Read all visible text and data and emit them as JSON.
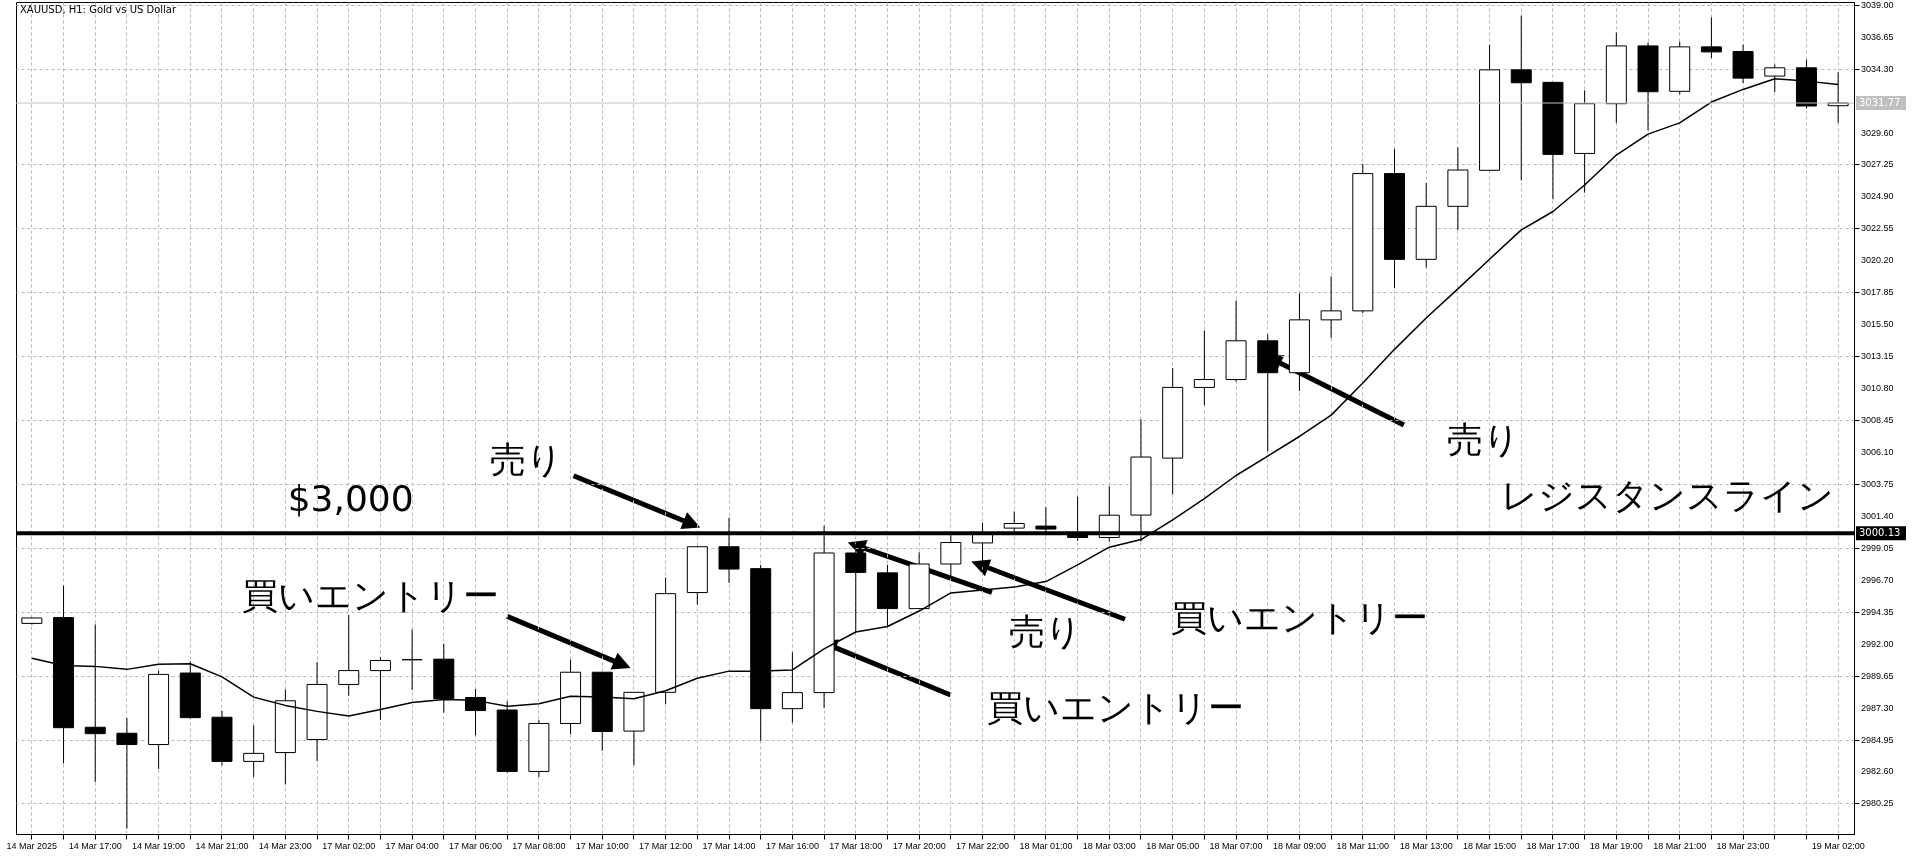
{
  "chart_data": {
    "type": "candlestick",
    "title": "XAUUSD, H1: Gold vs US Dollar",
    "categories": [
      "14 Mar 2025",
      null,
      "14 Mar 17:00",
      null,
      "14 Mar 19:00",
      null,
      "14 Mar 21:00",
      null,
      "14 Mar 23:00",
      null,
      "17 Mar 02:00",
      null,
      "17 Mar 04:00",
      null,
      "17 Mar 06:00",
      null,
      "17 Mar 08:00",
      null,
      "17 Mar 10:00",
      null,
      "17 Mar 12:00",
      null,
      "17 Mar 14:00",
      null,
      "17 Mar 16:00",
      null,
      "17 Mar 18:00",
      null,
      "17 Mar 20:00",
      null,
      "17 Mar 22:00",
      null,
      "18 Mar 01:00",
      null,
      "18 Mar 03:00",
      null,
      "18 Mar 05:00",
      null,
      "18 Mar 07:00",
      null,
      "18 Mar 09:00",
      null,
      "18 Mar 11:00",
      null,
      "18 Mar 13:00",
      null,
      "18 Mar 15:00",
      null,
      "18 Mar 17:00",
      null,
      "18 Mar 19:00",
      null,
      "18 Mar 21:00",
      null,
      "18 Mar 23:00",
      null,
      null,
      "19 Mar 02:00"
    ],
    "ohlc": [
      [
        2993.49,
        2993.95,
        2993.4,
        2993.89
      ],
      [
        2993.92,
        2996.27,
        2983.19,
        2985.82
      ],
      [
        2985.85,
        2993.42,
        2981.83,
        2985.38
      ],
      [
        2985.41,
        2986.53,
        2978.4,
        2984.58
      ],
      [
        2984.58,
        2989.99,
        2982.79,
        2989.74
      ],
      [
        2989.84,
        2990.7,
        2986.5,
        2986.56
      ],
      [
        2986.59,
        2987.06,
        2983.06,
        2983.34
      ],
      [
        2983.34,
        2986.0,
        2982.2,
        2983.93
      ],
      [
        2983.99,
        2988.63,
        2981.67,
        2987.8
      ],
      [
        2984.95,
        2990.64,
        2983.37,
        2989.0
      ],
      [
        2989.0,
        2994.1,
        2988.17,
        2990.02
      ],
      [
        2990.02,
        2991.0,
        2986.4,
        2990.76
      ],
      [
        2990.82,
        2993.05,
        2988.6,
        2990.82
      ],
      [
        2990.86,
        2992.0,
        2986.93,
        2987.95
      ],
      [
        2988.04,
        2988.66,
        2985.26,
        2987.08
      ],
      [
        2987.12,
        2987.77,
        2982.5,
        2982.6
      ],
      [
        2982.6,
        2986.38,
        2982.2,
        2986.13
      ],
      [
        2986.13,
        2990.83,
        2985.35,
        2989.9
      ],
      [
        2989.9,
        2989.9,
        2984.12,
        2985.54
      ],
      [
        2985.57,
        2988.42,
        2983.06,
        2988.42
      ],
      [
        2988.42,
        2996.86,
        2987.55,
        2995.68
      ],
      [
        2995.76,
        2999.2,
        2994.87,
        2999.13
      ],
      [
        2999.13,
        3001.26,
        2996.47,
        2997.49
      ],
      [
        2997.52,
        2997.8,
        2984.87,
        2987.22
      ],
      [
        2987.22,
        2991.37,
        2986.19,
        2988.4
      ],
      [
        2988.4,
        3000.68,
        2987.28,
        2998.67
      ],
      [
        2998.67,
        2999.35,
        2992.85,
        2997.24
      ],
      [
        2997.21,
        2997.8,
        2993.25,
        2994.58
      ],
      [
        2994.58,
        2998.73,
        2994.58,
        2997.86
      ],
      [
        2997.86,
        3000.12,
        2996.87,
        2999.44
      ],
      [
        2999.41,
        3000.9,
        2997.64,
        3000.12
      ],
      [
        3000.5,
        3001.73,
        3000.28,
        3000.84
      ],
      [
        3000.65,
        3002.04,
        2999.97,
        3000.43
      ],
      [
        3000.18,
        3002.81,
        2999.56,
        2999.81
      ],
      [
        2999.81,
        3003.58,
        2999.5,
        3001.45
      ],
      [
        3001.46,
        3008.5,
        2999.52,
        3005.73
      ],
      [
        3005.65,
        3012.27,
        3002.98,
        3010.85
      ],
      [
        3010.85,
        3015.04,
        3009.54,
        3011.43
      ],
      [
        3011.43,
        3017.24,
        3011.27,
        3014.28
      ],
      [
        3014.28,
        3014.75,
        3006.12,
        3011.93
      ],
      [
        3011.93,
        3017.76,
        3010.59,
        3015.82
      ],
      [
        3015.82,
        3019.02,
        3014.49,
        3016.48
      ],
      [
        3016.48,
        3027.3,
        3016.32,
        3026.58
      ],
      [
        3026.58,
        3028.38,
        3018.15,
        3020.27
      ],
      [
        3020.27,
        3025.89,
        3019.67,
        3024.17
      ],
      [
        3024.17,
        3028.5,
        3022.42,
        3026.84
      ],
      [
        3026.82,
        3036.05,
        3026.82,
        3034.21
      ],
      [
        3034.21,
        3038.2,
        3026.08,
        3033.26
      ],
      [
        3033.29,
        3033.29,
        3024.69,
        3027.99
      ],
      [
        3028.06,
        3032.7,
        3025.18,
        3031.72
      ],
      [
        3031.72,
        3036.95,
        3030.31,
        3035.97
      ],
      [
        3035.97,
        3036.22,
        3029.77,
        3032.6
      ],
      [
        3032.63,
        3036.29,
        3032.41,
        3035.9
      ],
      [
        3035.9,
        3038.07,
        3035.07,
        3035.53
      ],
      [
        3035.56,
        3036.07,
        3033.24,
        3033.6
      ],
      [
        3033.75,
        3034.6,
        3032.58,
        3034.36
      ],
      [
        3034.36,
        3034.97,
        3031.36,
        3031.55
      ],
      [
        3031.57,
        3034.04,
        3030.31,
        3031.77
      ]
    ],
    "series": [
      {
        "type": "line",
        "color": "#000000",
        "values": [
          2990.92,
          2990.39,
          2990.33,
          2990.11,
          2990.49,
          2990.52,
          2989.56,
          2988.07,
          2987.46,
          2987.02,
          2986.68,
          2987.15,
          2987.67,
          2987.89,
          2987.83,
          2987.39,
          2987.58,
          2988.14,
          2988.07,
          2987.95,
          2988.54,
          2989.46,
          2989.98,
          2989.98,
          2990.07,
          2991.62,
          2992.86,
          2993.26,
          2994.4,
          2995.73,
          2995.95,
          2996.16,
          2996.57,
          2997.8,
          2999.1,
          2999.66,
          3001.1,
          3002.67,
          3004.37,
          3005.8,
          3007.24,
          3008.81,
          3011.17,
          3013.65,
          3015.96,
          3018.1,
          3020.28,
          3022.44,
          3023.79,
          3025.74,
          3027.94,
          3029.48,
          3030.31,
          3031.84,
          3032.77,
          3033.55,
          3033.38,
          3033.14
        ]
      }
    ],
    "ylim": [
      2978.0,
      3039.2
    ],
    "yticks": [
      2980.25,
      {
        "value": 2982.6,
        "label": "2982.60"
      },
      2984.95,
      {
        "value": 2987.3,
        "label": "2987.30"
      },
      2989.65,
      {
        "value": 2992,
        "label": "2992.00"
      },
      2994.35,
      {
        "value": 2996.7,
        "label": "2996.70"
      },
      2999.05,
      {
        "value": 3001.4,
        "label": "3001.40"
      },
      3003.75,
      {
        "value": 3006.1,
        "label": "3006.10"
      },
      3008.45,
      {
        "value": 3010.8,
        "label": "3010.80"
      },
      3013.15,
      {
        "value": 3015.5,
        "label": "3015.50"
      },
      3017.85,
      {
        "value": 3020.2,
        "label": "3020.20"
      },
      3022.55,
      {
        "value": 3024.9,
        "label": "3024.90"
      },
      3027.25,
      {
        "value": 3029.6,
        "label": "3029.60"
      },
      {
        "value": 3034.3,
        "label": "3034.30"
      },
      3036.65,
      {
        "value": 3039,
        "label": "3039.00"
      }
    ],
    "ref_lines": [
      {
        "axis": "y",
        "value": 3000.13,
        "label": "3000.13",
        "color": "#000000"
      },
      {
        "axis": "y",
        "value": 3031.77,
        "label": "3031.77",
        "color": "#c0c0c0"
      }
    ],
    "annotations": [
      "$3,000",
      "レジスタンスライン",
      "売り",
      "買いエントリー",
      "売り",
      "買いエントリー",
      "買いエントリー",
      "売り"
    ],
    "grid": true
  }
}
